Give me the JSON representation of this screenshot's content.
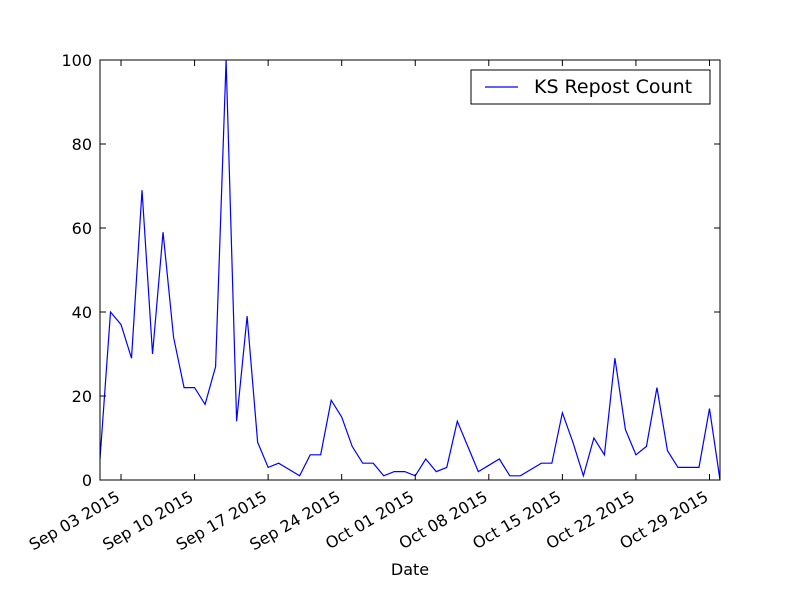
{
  "chart_data": {
    "type": "line",
    "title": "",
    "xlabel": "Date",
    "ylabel": "",
    "ylim": [
      0,
      100
    ],
    "yticks": [
      0,
      20,
      40,
      60,
      80,
      100
    ],
    "xlim": [
      "2015-09-01",
      "2015-10-30"
    ],
    "xticks": [
      {
        "date": "2015-09-03",
        "label": "Sep 03 2015"
      },
      {
        "date": "2015-09-10",
        "label": "Sep 10 2015"
      },
      {
        "date": "2015-09-17",
        "label": "Sep 17 2015"
      },
      {
        "date": "2015-09-24",
        "label": "Sep 24 2015"
      },
      {
        "date": "2015-10-01",
        "label": "Oct 01 2015"
      },
      {
        "date": "2015-10-08",
        "label": "Oct 08 2015"
      },
      {
        "date": "2015-10-15",
        "label": "Oct 15 2015"
      },
      {
        "date": "2015-10-22",
        "label": "Oct 22 2015"
      },
      {
        "date": "2015-10-29",
        "label": "Oct 29 2015"
      }
    ],
    "grid": false,
    "legend_position": "top-right",
    "series": [
      {
        "name": "KS Repost Count",
        "color": "#0000ff",
        "x": [
          "2015-09-01",
          "2015-09-02",
          "2015-09-03",
          "2015-09-04",
          "2015-09-05",
          "2015-09-06",
          "2015-09-07",
          "2015-09-08",
          "2015-09-09",
          "2015-09-10",
          "2015-09-11",
          "2015-09-12",
          "2015-09-13",
          "2015-09-14",
          "2015-09-15",
          "2015-09-16",
          "2015-09-17",
          "2015-09-18",
          "2015-09-19",
          "2015-09-20",
          "2015-09-21",
          "2015-09-22",
          "2015-09-23",
          "2015-09-24",
          "2015-09-25",
          "2015-09-26",
          "2015-09-27",
          "2015-09-28",
          "2015-09-29",
          "2015-09-30",
          "2015-10-01",
          "2015-10-02",
          "2015-10-03",
          "2015-10-04",
          "2015-10-05",
          "2015-10-06",
          "2015-10-07",
          "2015-10-08",
          "2015-10-09",
          "2015-10-10",
          "2015-10-11",
          "2015-10-12",
          "2015-10-13",
          "2015-10-14",
          "2015-10-15",
          "2015-10-16",
          "2015-10-17",
          "2015-10-18",
          "2015-10-19",
          "2015-10-20",
          "2015-10-21",
          "2015-10-22",
          "2015-10-23",
          "2015-10-24",
          "2015-10-25",
          "2015-10-26",
          "2015-10-27",
          "2015-10-28",
          "2015-10-29",
          "2015-10-30"
        ],
        "y": [
          5,
          40,
          37,
          29,
          69,
          30,
          59,
          34,
          22,
          22,
          18,
          27,
          100,
          14,
          39,
          9,
          3,
          4,
          2.5,
          1,
          6,
          6,
          19,
          15,
          8,
          4,
          4,
          1,
          2,
          2,
          1,
          5,
          2,
          3,
          14,
          8,
          2,
          3.5,
          5,
          1,
          1,
          2.5,
          4,
          4,
          16,
          9,
          1,
          10,
          6,
          29,
          12,
          6,
          8,
          22,
          7,
          3,
          3,
          3,
          17,
          0
        ]
      }
    ]
  }
}
